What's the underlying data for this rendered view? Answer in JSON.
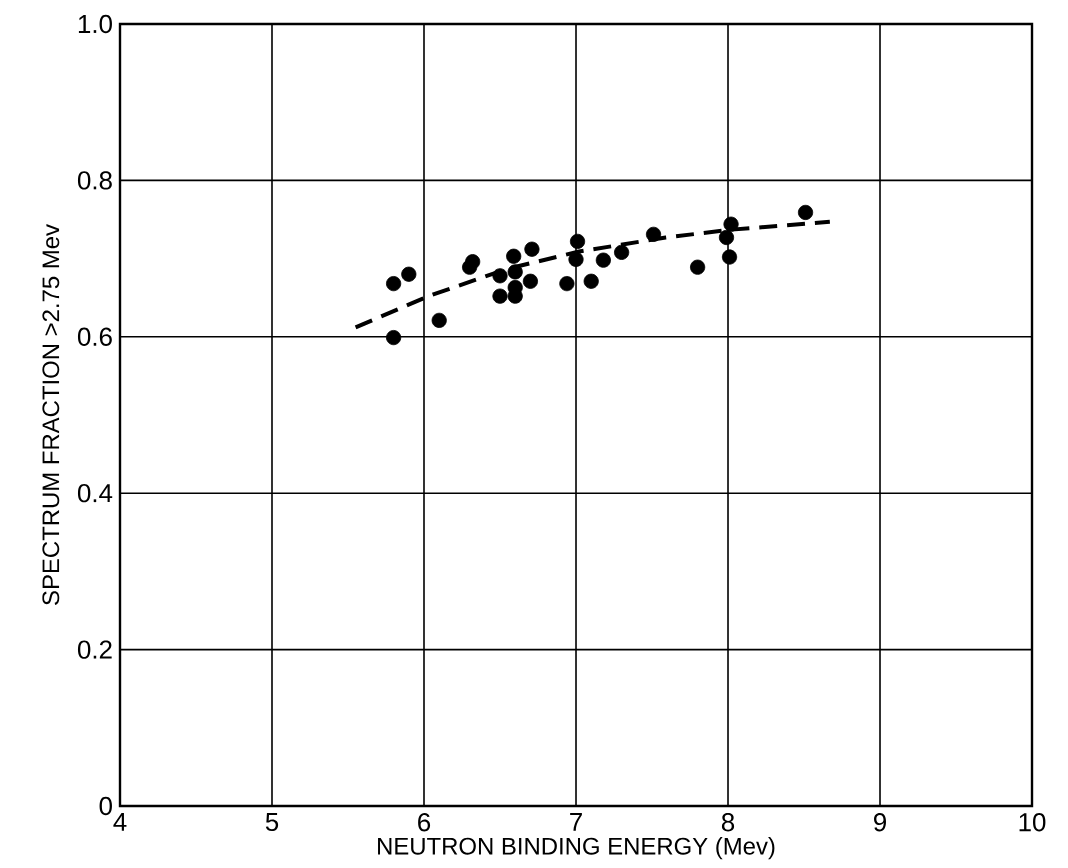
{
  "chart_data": {
    "type": "scatter",
    "xlabel": "NEUTRON BINDING ENERGY (Mev)",
    "ylabel": "SPECTRUM FRACTION  >2.75 Mev",
    "xlim": [
      4,
      10
    ],
    "ylim": [
      0,
      1.0
    ],
    "xticks": [
      4,
      5,
      6,
      7,
      8,
      9,
      10
    ],
    "yticks": [
      0,
      {
        "value": 0.2,
        "label": "0.2"
      },
      {
        "value": 0.4,
        "label": "0.4"
      },
      {
        "value": 0.6,
        "label": "0.6"
      },
      {
        "value": 0.8,
        "label": "0.8"
      },
      {
        "value": 1.0,
        "label": "1.0"
      }
    ],
    "grid": true,
    "series": [
      {
        "marker": "circle",
        "color": "#000000",
        "x": [
          5.8,
          5.9,
          5.8,
          6.1,
          6.3,
          6.32,
          6.5,
          6.5,
          6.59,
          6.6,
          6.6,
          6.6,
          6.71,
          6.7,
          6.94,
          7.01,
          7.0,
          7.1,
          7.18,
          7.3,
          7.51,
          7.8,
          7.99,
          8.02,
          8.01,
          8.51
        ],
        "values": [
          0.668,
          0.68,
          0.599,
          0.621,
          0.689,
          0.696,
          0.678,
          0.652,
          0.703,
          0.683,
          0.652,
          0.663,
          0.712,
          0.671,
          0.668,
          0.722,
          0.699,
          0.671,
          0.698,
          0.708,
          0.731,
          0.689,
          0.727,
          0.744,
          0.702,
          0.759
        ]
      },
      {
        "type": "line",
        "line_style": "dashed",
        "marker": "none",
        "color": "#000000",
        "x": [
          5.55,
          6.03,
          6.55,
          7.02,
          7.59,
          8.02,
          8.67
        ],
        "values": [
          0.612,
          0.652,
          0.687,
          0.709,
          0.727,
          0.737,
          0.747
        ]
      }
    ]
  }
}
